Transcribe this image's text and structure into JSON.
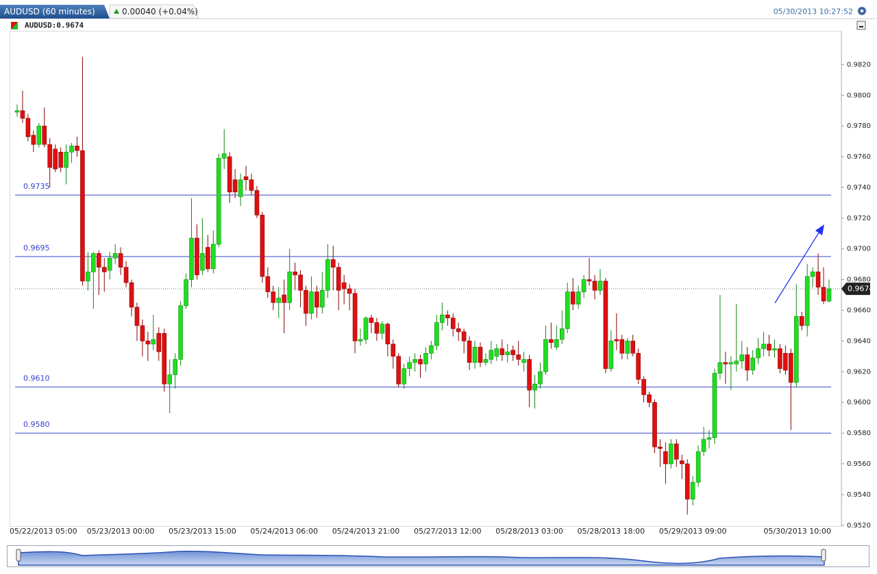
{
  "chart_data": {
    "type": "candlestick",
    "title": "AUDUSD (60 minutes)",
    "change": "0.00040 (+0.04%)",
    "timestamp": "05/30/2013 10:27:52",
    "symbol_label": "AUDUSD:0.9674",
    "categories": [
      "05/22/2013 05:00",
      null,
      null,
      null,
      null,
      null,
      null,
      null,
      null,
      null,
      null,
      null,
      null,
      null,
      null,
      null,
      null,
      null,
      null,
      "05/23/2013 00:00",
      null,
      null,
      null,
      null,
      null,
      null,
      null,
      null,
      null,
      null,
      null,
      null,
      null,
      null,
      "05/23/2013 15:00",
      null,
      null,
      null,
      null,
      null,
      null,
      null,
      null,
      null,
      null,
      null,
      null,
      null,
      null,
      "05/24/2013 06:00",
      null,
      null,
      null,
      null,
      null,
      null,
      null,
      null,
      null,
      null,
      null,
      null,
      null,
      null,
      "05/24/2013 21:00",
      null,
      null,
      null,
      null,
      null,
      null,
      null,
      null,
      null,
      null,
      null,
      null,
      null,
      null,
      "05/27/2013 12:00",
      null,
      null,
      null,
      null,
      null,
      null,
      null,
      null,
      null,
      null,
      null,
      null,
      null,
      null,
      "05/28/2013 03:00",
      null,
      null,
      null,
      null,
      null,
      null,
      null,
      null,
      null,
      null,
      null,
      null,
      null,
      null,
      "05/28/2013 18:00",
      null,
      null,
      null,
      null,
      null,
      null,
      null,
      null,
      null,
      null,
      null,
      null,
      null,
      null,
      "05/29/2013 09:00",
      null,
      null,
      null,
      null,
      null,
      null,
      null,
      null,
      null,
      null,
      null,
      null,
      null,
      null,
      null,
      null,
      null,
      null,
      null,
      null,
      null,
      null,
      null,
      null,
      "05/30/2013 10:00"
    ],
    "open": [
      0.9789,
      0.979,
      0.9785,
      0.9774,
      0.9768,
      0.978,
      0.9768,
      0.9765,
      0.9763,
      0.9753,
      0.9763,
      0.9767,
      0.9764,
      0.9679,
      0.9685,
      0.9697,
      0.9688,
      0.9686,
      0.9694,
      0.9697,
      0.9688,
      0.9678,
      0.9662,
      0.965,
      0.964,
      0.9638,
      0.9645,
      0.9645,
      0.9612,
      0.9618,
      0.9628,
      0.9663,
      0.968,
      0.9707,
      0.9686,
      0.9701,
      0.9687,
      0.9703,
      0.9759,
      0.976,
      0.9745,
      0.9734,
      0.9747,
      0.9745,
      0.9738,
      0.9722,
      0.9682,
      0.9672,
      0.9665,
      0.967,
      0.9665,
      0.9685,
      0.9683,
      0.9673,
      0.9658,
      0.9672,
      0.9662,
      0.9673,
      0.9693,
      0.9688,
      0.9678,
      0.9674,
      0.9671,
      0.964,
      0.9641,
      0.9655,
      0.9652,
      0.9645,
      0.9651,
      0.9638,
      0.963,
      0.9612,
      0.9622,
      0.9626,
      0.9628,
      0.9625,
      0.9632,
      0.9637,
      0.9652,
      0.9657,
      0.9655,
      0.9648,
      0.9646,
      0.964,
      0.9626,
      0.9636,
      0.9626,
      0.9628,
      0.963,
      0.9635,
      0.9631,
      0.9634,
      0.9631,
      0.9626,
      0.9628,
      0.9608,
      0.9612,
      0.962,
      0.9641,
      0.9636,
      0.9641,
      0.9648,
      0.9672,
      0.9664,
      0.9672,
      0.968,
      0.9679,
      0.9673,
      0.9679,
      0.9622,
      0.9641,
      0.9641,
      0.9632,
      0.964,
      0.9632,
      0.9615,
      0.9605,
      0.96,
      0.9571,
      0.9568,
      0.956,
      0.9573,
      0.9562,
      0.956,
      0.9537,
      0.9548,
      0.9568,
      0.9576,
      0.9577,
      0.9619,
      0.9626,
      0.9625,
      0.9625,
      0.9627,
      0.9631,
      0.9621,
      0.9629,
      0.9635,
      0.9638,
      0.9634,
      0.9635,
      0.9632,
      0.9632,
      0.9613,
      0.9656,
      0.965,
      0.9682,
      0.9685,
      0.9675,
      0.9666
    ],
    "high": [
      0.9794,
      0.9803,
      0.9788,
      0.9777,
      0.9782,
      0.9792,
      0.9772,
      0.9768,
      0.9766,
      0.9768,
      0.9769,
      0.9773,
      0.9825,
      0.9698,
      0.9698,
      0.9699,
      0.9694,
      0.9698,
      0.9703,
      0.9701,
      0.9692,
      0.968,
      0.9665,
      0.9654,
      0.9646,
      0.9657,
      0.9649,
      0.9648,
      0.9628,
      0.9632,
      0.9666,
      0.9684,
      0.9733,
      0.9716,
      0.972,
      0.9709,
      0.9712,
      0.9762,
      0.9778,
      0.9763,
      0.9752,
      0.9749,
      0.9754,
      0.9749,
      0.9741,
      0.9724,
      0.9688,
      0.9676,
      0.9675,
      0.968,
      0.97,
      0.9691,
      0.9686,
      0.9676,
      0.9682,
      0.9676,
      0.9685,
      0.9703,
      0.9702,
      0.9691,
      0.9683,
      0.9677,
      0.9674,
      0.9648,
      0.9656,
      0.9657,
      0.9655,
      0.9653,
      0.9652,
      0.9641,
      0.9632,
      0.9625,
      0.963,
      0.9632,
      0.9631,
      0.9636,
      0.964,
      0.9657,
      0.9665,
      0.966,
      0.9658,
      0.9652,
      0.9648,
      0.9643,
      0.964,
      0.9639,
      0.9632,
      0.964,
      0.9638,
      0.9641,
      0.9638,
      0.9637,
      0.964,
      0.9633,
      0.9631,
      0.9618,
      0.9626,
      0.965,
      0.9652,
      0.965,
      0.966,
      0.9678,
      0.9681,
      0.9676,
      0.9683,
      0.9694,
      0.9683,
      0.9687,
      0.9681,
      0.9647,
      0.9658,
      0.9644,
      0.9642,
      0.9644,
      0.9635,
      0.9617,
      0.9607,
      0.9602,
      0.9576,
      0.9574,
      0.9576,
      0.9576,
      0.9566,
      0.9563,
      0.9552,
      0.9572,
      0.9584,
      0.9582,
      0.9622,
      0.967,
      0.9633,
      0.963,
      0.9664,
      0.964,
      0.9636,
      0.9634,
      0.9642,
      0.9646,
      0.9644,
      0.9641,
      0.9638,
      0.9637,
      0.9635,
      0.9677,
      0.9659,
      0.969,
      0.9688,
      0.9697,
      0.9688,
      0.968
    ],
    "low": [
      0.9786,
      0.9782,
      0.977,
      0.9763,
      0.9766,
      0.9766,
      0.974,
      0.975,
      0.975,
      0.9742,
      0.9756,
      0.976,
      0.9676,
      0.9673,
      0.9661,
      0.967,
      0.9672,
      0.968,
      0.969,
      0.9683,
      0.9675,
      0.9656,
      0.964,
      0.963,
      0.9627,
      0.9634,
      0.9627,
      0.9607,
      0.9593,
      0.9609,
      0.9624,
      0.9661,
      0.9675,
      0.968,
      0.9683,
      0.9685,
      0.9684,
      0.9701,
      0.9752,
      0.973,
      0.9733,
      0.9728,
      0.9738,
      0.9735,
      0.972,
      0.9678,
      0.9668,
      0.966,
      0.9655,
      0.9645,
      0.966,
      0.9673,
      0.9662,
      0.965,
      0.9654,
      0.9655,
      0.9658,
      0.9668,
      0.9673,
      0.966,
      0.9664,
      0.966,
      0.9632,
      0.9637,
      0.9638,
      0.9645,
      0.964,
      0.9641,
      0.963,
      0.9622,
      0.961,
      0.9609,
      0.9617,
      0.962,
      0.9616,
      0.962,
      0.9628,
      0.9634,
      0.9647,
      0.965,
      0.9643,
      0.964,
      0.9632,
      0.9621,
      0.9622,
      0.9623,
      0.9624,
      0.9625,
      0.9627,
      0.9627,
      0.9626,
      0.9627,
      0.9624,
      0.962,
      0.9597,
      0.9596,
      0.9609,
      0.9618,
      0.9635,
      0.9634,
      0.9638,
      0.9645,
      0.966,
      0.9661,
      0.9668,
      0.9676,
      0.9667,
      0.967,
      0.9619,
      0.962,
      0.9634,
      0.9628,
      0.9628,
      0.963,
      0.9612,
      0.96,
      0.9597,
      0.9567,
      0.9558,
      0.9547,
      0.9557,
      0.9558,
      0.955,
      0.9527,
      0.9533,
      0.9545,
      0.9565,
      0.957,
      0.9573,
      0.9615,
      0.9612,
      0.9608,
      0.962,
      0.9622,
      0.9614,
      0.9618,
      0.9625,
      0.963,
      0.963,
      0.9629,
      0.9619,
      0.9618,
      0.9582,
      0.961,
      0.9647,
      0.9643,
      0.9675,
      0.967,
      0.9664,
      0.9665
    ],
    "close": [
      0.979,
      0.9785,
      0.9773,
      0.9768,
      0.978,
      0.9768,
      0.9753,
      0.9752,
      0.9753,
      0.9763,
      0.9767,
      0.9764,
      0.9679,
      0.9685,
      0.9697,
      0.9688,
      0.9685,
      0.9694,
      0.9697,
      0.9688,
      0.9678,
      0.9662,
      0.965,
      0.964,
      0.9638,
      0.9641,
      0.9633,
      0.9612,
      0.9618,
      0.9628,
      0.9663,
      0.968,
      0.9707,
      0.9683,
      0.9697,
      0.9687,
      0.9703,
      0.9759,
      0.9762,
      0.9737,
      0.9737,
      0.9745,
      0.9745,
      0.9738,
      0.9722,
      0.9682,
      0.9672,
      0.9665,
      0.9668,
      0.9665,
      0.9685,
      0.9683,
      0.9673,
      0.9658,
      0.9672,
      0.9662,
      0.9673,
      0.9693,
      0.9688,
      0.9673,
      0.9674,
      0.9671,
      0.964,
      0.9641,
      0.9655,
      0.9652,
      0.9645,
      0.9651,
      0.9638,
      0.963,
      0.9612,
      0.9622,
      0.9626,
      0.9628,
      0.9625,
      0.9632,
      0.9637,
      0.9652,
      0.9657,
      0.9655,
      0.9648,
      0.9646,
      0.964,
      0.9626,
      0.9636,
      0.9626,
      0.9628,
      0.9634,
      0.9635,
      0.9631,
      0.9633,
      0.9631,
      0.9628,
      0.9628,
      0.9608,
      0.9612,
      0.962,
      0.9641,
      0.9639,
      0.9641,
      0.9648,
      0.9672,
      0.9664,
      0.9672,
      0.968,
      0.9679,
      0.9673,
      0.9679,
      0.9622,
      0.964,
      0.964,
      0.9632,
      0.964,
      0.9632,
      0.9615,
      0.9605,
      0.96,
      0.9571,
      0.957,
      0.956,
      0.9573,
      0.9563,
      0.956,
      0.9537,
      0.9548,
      0.9568,
      0.9576,
      0.9577,
      0.9619,
      0.9626,
      0.9625,
      0.9626,
      0.9627,
      0.9631,
      0.9621,
      0.9629,
      0.9635,
      0.9638,
      0.9634,
      0.9635,
      0.9622,
      0.9621,
      0.9613,
      0.9656,
      0.965,
      0.9682,
      0.9685,
      0.9675,
      0.9666,
      0.9674
    ],
    "up_color": "#22dd22",
    "down_color": "#e01010",
    "level_color": "#3344cc",
    "ylim": [
      0.9519,
      0.9842
    ],
    "yticks": [
      {
        "value": 0.952,
        "label": "0.9520"
      },
      {
        "value": 0.954,
        "label": "0.9540"
      },
      {
        "value": 0.956,
        "label": "0.9560"
      },
      {
        "value": 0.958,
        "label": "0.9580"
      },
      {
        "value": 0.96,
        "label": "0.9600"
      },
      {
        "value": 0.962,
        "label": "0.9620"
      },
      {
        "value": 0.964,
        "label": "0.9640"
      },
      {
        "value": 0.966,
        "label": "0.9660"
      },
      {
        "value": 0.968,
        "label": "0.9680"
      },
      {
        "value": 0.97,
        "label": "0.9700"
      },
      {
        "value": 0.972,
        "label": "0.9720"
      },
      {
        "value": 0.974,
        "label": "0.9740"
      },
      {
        "value": 0.976,
        "label": "0.9760"
      },
      {
        "value": 0.978,
        "label": "0.9780"
      },
      {
        "value": 0.98,
        "label": "0.9800"
      },
      {
        "value": 0.982,
        "label": "0.9820"
      }
    ],
    "levels": [
      0.9735,
      0.9695,
      {
        "value": 0.961,
        "label": "0.9610"
      },
      {
        "value": 0.958,
        "label": "0.9580"
      }
    ],
    "last_price": 0.9674
  }
}
